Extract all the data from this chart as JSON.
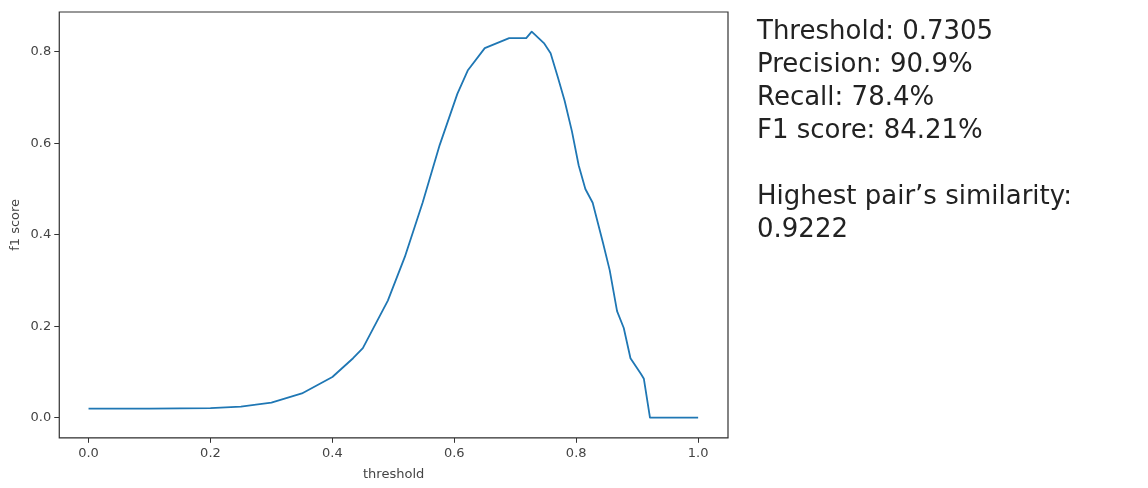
{
  "chart_data": {
    "type": "line",
    "xlabel": "threshold",
    "ylabel": "f1 score",
    "x": [
      0,
      0.1,
      0.2,
      0.25,
      0.3,
      0.35,
      0.4,
      0.434,
      0.45,
      0.491,
      0.519,
      0.548,
      0.576,
      0.605,
      0.622,
      0.65,
      0.69,
      0.718,
      0.727,
      0.747,
      0.758,
      0.77,
      0.781,
      0.793,
      0.804,
      0.815,
      0.827,
      0.844,
      0.855,
      0.867,
      0.878,
      0.889,
      0.906,
      0.911,
      0.921,
      1.0
    ],
    "series": [
      {
        "color": "#1f77b4",
        "values": [
          0.02,
          0.02,
          0.021,
          0.024,
          0.033,
          0.053,
          0.089,
          0.13,
          0.152,
          0.256,
          0.352,
          0.47,
          0.596,
          0.708,
          0.759,
          0.808,
          0.83,
          0.83,
          0.844,
          0.819,
          0.797,
          0.744,
          0.693,
          0.626,
          0.552,
          0.5,
          0.47,
          0.382,
          0.322,
          0.233,
          0.196,
          0.13,
          0.096,
          0.085,
          0,
          0
        ]
      }
    ],
    "xlim": [
      -0.048,
      1.049
    ],
    "ylim": [
      -0.044,
      0.887
    ],
    "xticks": [
      {
        "value": 0,
        "label": "0.0"
      },
      0.2,
      0.4,
      0.6,
      0.8,
      {
        "value": 1,
        "label": "1.0"
      }
    ],
    "yticks": [
      {
        "value": 0,
        "label": "0.0"
      },
      0.2,
      0.4,
      0.6,
      0.8
    ],
    "grid": false,
    "legend": false,
    "marker": "none",
    "line_style": "solid",
    "annotations": [
      "Threshold: 0.7305",
      "Precision: 90.9%",
      "Recall: 78.4%",
      "F1 score: 84.21%",
      "Highest pair’s similarity: 0.9222"
    ]
  }
}
